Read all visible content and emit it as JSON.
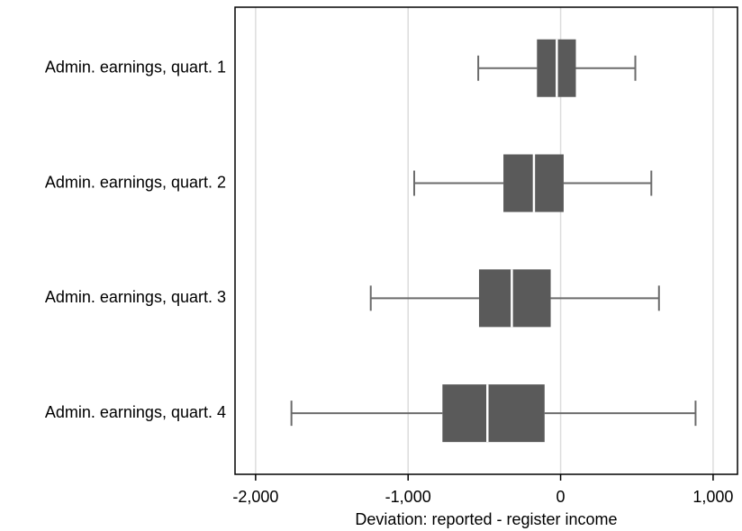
{
  "chart_data": {
    "type": "box",
    "categories": [
      "Admin. earnings, quart. 1",
      "Admin. earnings, quart. 2",
      "Admin. earnings, quart. 3",
      "Admin. earnings, quart. 4"
    ],
    "low": [
      -540,
      -960,
      -1245,
      -1765
    ],
    "q1": [
      -155,
      -375,
      -535,
      -775
    ],
    "median": [
      -25,
      -175,
      -320,
      -480
    ],
    "q3": [
      100,
      20,
      -65,
      -105
    ],
    "high": [
      490,
      595,
      645,
      885
    ],
    "color": "#5a5a5a",
    "xlabel": "Deviation: reported - register income",
    "xlim": [
      -2135,
      1160
    ],
    "xticks": [
      {
        "value": -2000,
        "label": "-2,000"
      },
      {
        "value": -1000,
        "label": "-1,000"
      },
      0,
      {
        "value": 1000,
        "label": "1,000"
      }
    ],
    "grid": true
  }
}
